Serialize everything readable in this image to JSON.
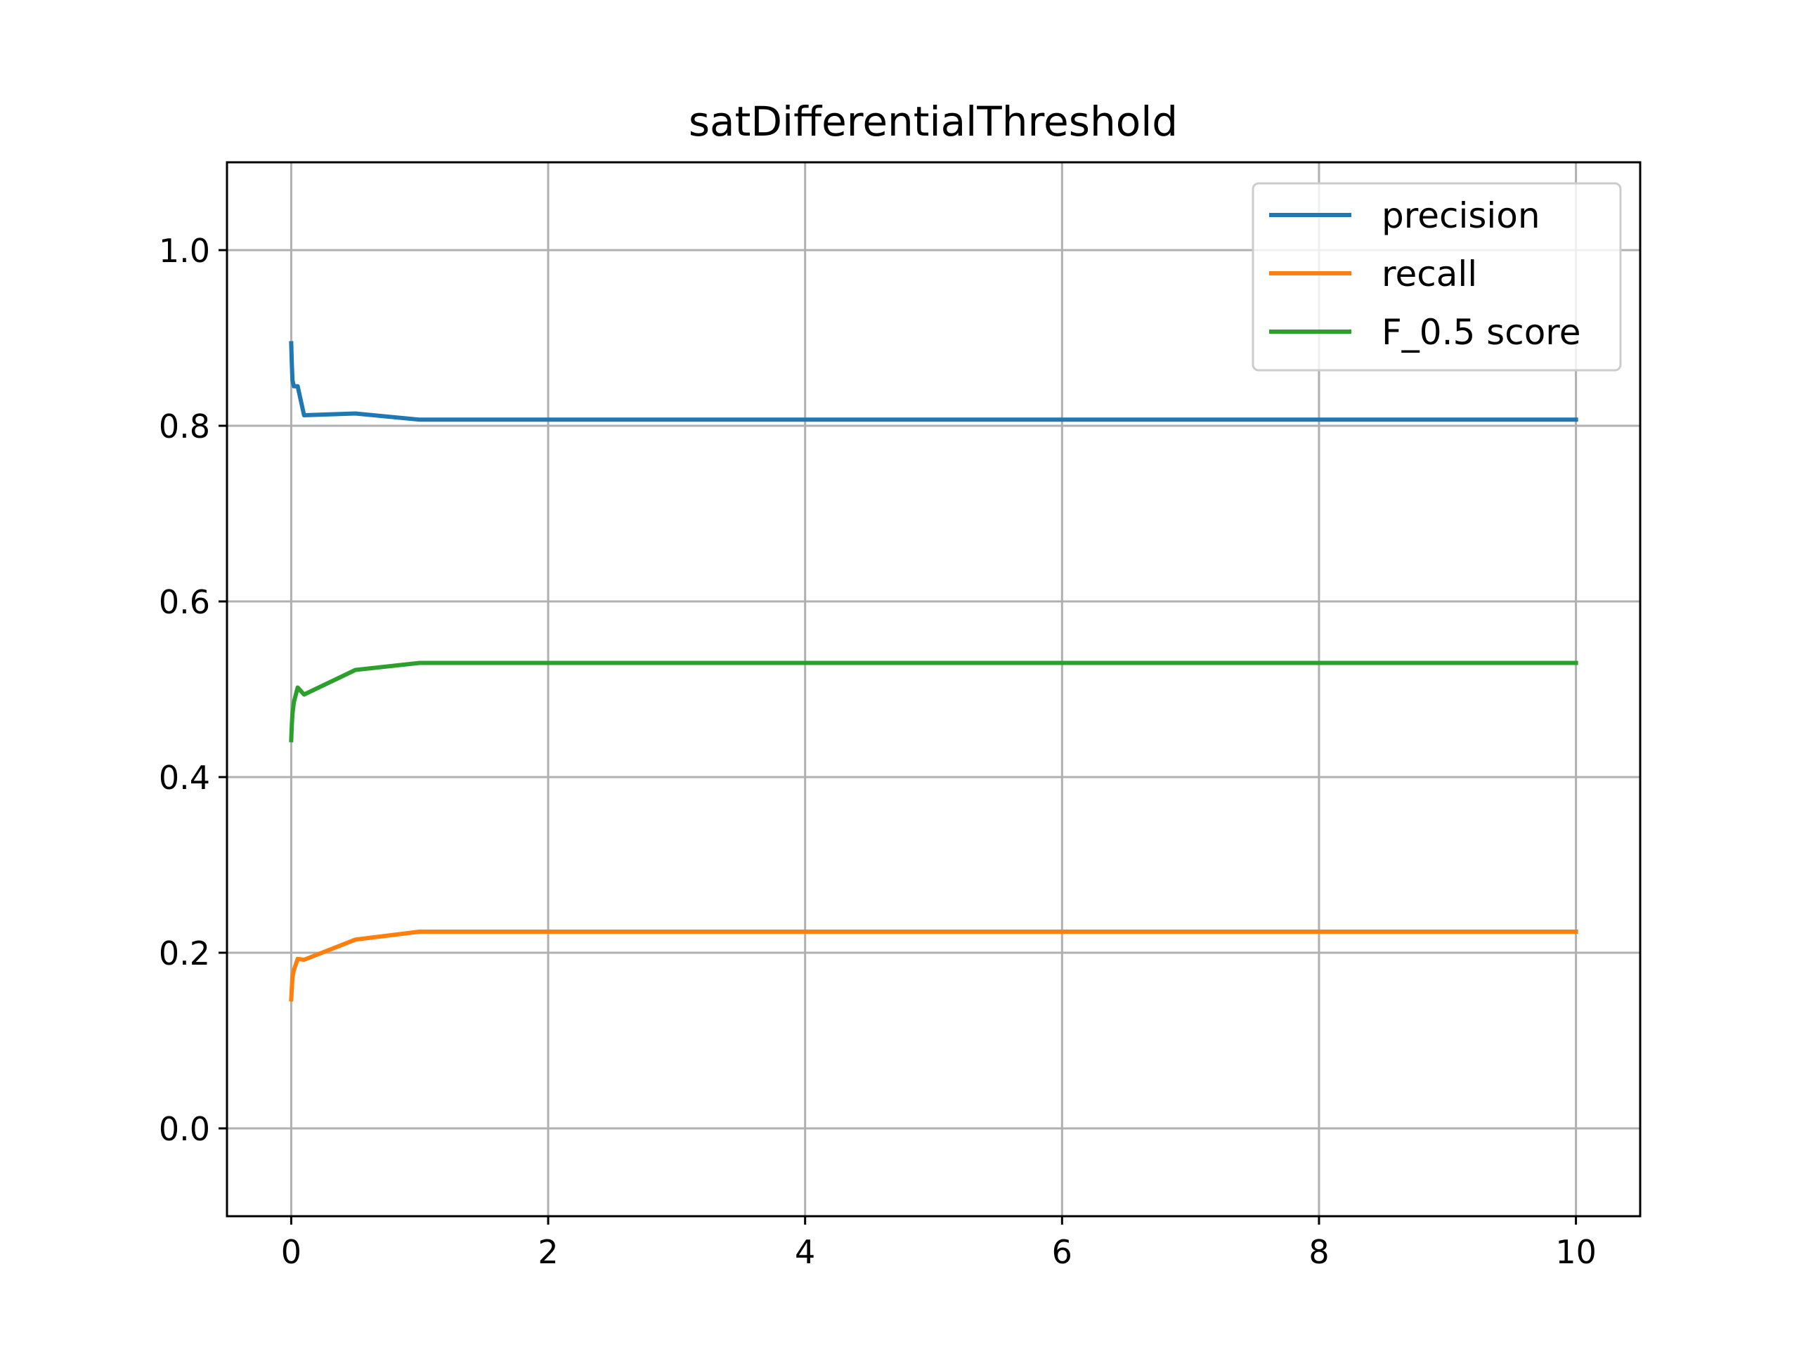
{
  "chart_data": {
    "type": "line",
    "title": "satDifferentialThreshold",
    "xlabel": "",
    "ylabel": "",
    "xlim": [
      -0.5,
      10.5
    ],
    "ylim": [
      -0.1,
      1.1
    ],
    "x_ticks": [
      0,
      2,
      4,
      6,
      8,
      10
    ],
    "x_tick_labels": [
      "0",
      "2",
      "4",
      "6",
      "8",
      "10"
    ],
    "y_ticks": [
      0.0,
      0.2,
      0.4,
      0.6,
      0.8,
      1.0
    ],
    "y_tick_labels": [
      "0.0",
      "0.2",
      "0.4",
      "0.6",
      "0.8",
      "1.0"
    ],
    "grid": true,
    "legend_position": "top-right",
    "series": [
      {
        "name": "precision",
        "color": "#1f77b4",
        "x": [
          0,
          0.005,
          0.01,
          0.02,
          0.05,
          0.1,
          0.5,
          1,
          2,
          5,
          10
        ],
        "y": [
          0.894,
          0.87,
          0.852,
          0.845,
          0.845,
          0.812,
          0.814,
          0.807,
          0.807,
          0.807,
          0.807
        ]
      },
      {
        "name": "recall",
        "color": "#ff7f0e",
        "x": [
          0,
          0.005,
          0.01,
          0.02,
          0.05,
          0.1,
          0.5,
          1,
          2,
          5,
          10
        ],
        "y": [
          0.147,
          0.16,
          0.172,
          0.18,
          0.193,
          0.192,
          0.215,
          0.224,
          0.224,
          0.224,
          0.224
        ]
      },
      {
        "name": "F_0.5 score",
        "color": "#2ca02c",
        "x": [
          0,
          0.005,
          0.01,
          0.02,
          0.05,
          0.1,
          0.5,
          1,
          2,
          5,
          10
        ],
        "y": [
          0.442,
          0.46,
          0.472,
          0.485,
          0.502,
          0.494,
          0.522,
          0.53,
          0.53,
          0.53,
          0.53
        ]
      }
    ]
  }
}
